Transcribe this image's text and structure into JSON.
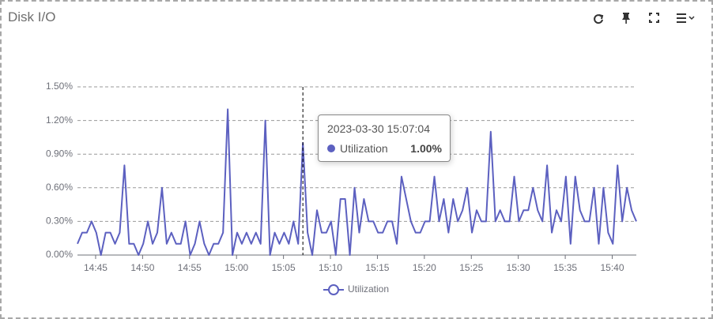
{
  "chart_data": {
    "type": "line",
    "title": "Disk I/O",
    "x": [
      "14:43:04",
      "14:43:34",
      "14:44:04",
      "14:44:34",
      "14:45:04",
      "14:45:34",
      "14:46:04",
      "14:46:34",
      "14:47:04",
      "14:47:34",
      "14:48:04",
      "14:48:34",
      "14:49:04",
      "14:49:34",
      "14:50:04",
      "14:50:34",
      "14:51:04",
      "14:51:34",
      "14:52:04",
      "14:52:34",
      "14:53:04",
      "14:53:34",
      "14:54:04",
      "14:54:34",
      "14:55:04",
      "14:55:34",
      "14:56:04",
      "14:56:34",
      "14:57:04",
      "14:57:34",
      "14:58:04",
      "14:58:34",
      "14:59:04",
      "14:59:34",
      "15:00:04",
      "15:00:34",
      "15:01:04",
      "15:01:34",
      "15:02:04",
      "15:02:34",
      "15:03:04",
      "15:03:34",
      "15:04:04",
      "15:04:34",
      "15:05:04",
      "15:05:34",
      "15:06:04",
      "15:06:34",
      "15:07:04",
      "15:07:34",
      "15:08:04",
      "15:08:34",
      "15:09:04",
      "15:09:34",
      "15:10:04",
      "15:10:34",
      "15:11:04",
      "15:11:34",
      "15:12:04",
      "15:12:34",
      "15:13:04",
      "15:13:34",
      "15:14:04",
      "15:14:34",
      "15:15:04",
      "15:15:34",
      "15:16:04",
      "15:16:34",
      "15:17:04",
      "15:17:34",
      "15:18:04",
      "15:18:34",
      "15:19:04",
      "15:19:34",
      "15:20:04",
      "15:20:34",
      "15:21:04",
      "15:21:34",
      "15:22:04",
      "15:22:34",
      "15:23:04",
      "15:23:34",
      "15:24:04",
      "15:24:34",
      "15:25:04",
      "15:25:34",
      "15:26:04",
      "15:26:34",
      "15:27:04",
      "15:27:34",
      "15:28:04",
      "15:28:34",
      "15:29:04",
      "15:29:34",
      "15:30:04",
      "15:30:34",
      "15:31:04",
      "15:31:34",
      "15:32:04",
      "15:32:34",
      "15:33:04",
      "15:33:34",
      "15:34:04",
      "15:34:34",
      "15:35:04",
      "15:35:34",
      "15:36:04",
      "15:36:34",
      "15:37:04",
      "15:37:34",
      "15:38:04",
      "15:38:34",
      "15:39:04",
      "15:39:34",
      "15:40:04",
      "15:40:34",
      "15:41:04",
      "15:41:34",
      "15:42:04",
      "15:42:34"
    ],
    "series": [
      {
        "name": "Utilization",
        "color": "#5c60c0",
        "values": [
          0.1,
          0.2,
          0.2,
          0.3,
          0.2,
          0.0,
          0.2,
          0.2,
          0.1,
          0.2,
          0.8,
          0.1,
          0.1,
          0.0,
          0.1,
          0.3,
          0.1,
          0.2,
          0.6,
          0.1,
          0.2,
          0.1,
          0.1,
          0.3,
          0.0,
          0.1,
          0.3,
          0.1,
          0.0,
          0.1,
          0.1,
          0.2,
          1.3,
          0.0,
          0.2,
          0.1,
          0.2,
          0.1,
          0.2,
          0.1,
          1.2,
          0.0,
          0.2,
          0.1,
          0.2,
          0.1,
          0.3,
          0.1,
          1.0,
          0.2,
          0.0,
          0.4,
          0.2,
          0.2,
          0.3,
          0.0,
          0.5,
          0.5,
          0.0,
          0.6,
          0.2,
          0.5,
          0.3,
          0.3,
          0.2,
          0.2,
          0.3,
          0.3,
          0.1,
          0.7,
          0.5,
          0.3,
          0.2,
          0.2,
          0.3,
          0.3,
          0.7,
          0.3,
          0.5,
          0.2,
          0.5,
          0.3,
          0.4,
          0.6,
          0.2,
          0.4,
          0.3,
          0.3,
          1.1,
          0.3,
          0.4,
          0.3,
          0.3,
          0.7,
          0.3,
          0.4,
          0.4,
          0.6,
          0.4,
          0.3,
          0.8,
          0.2,
          0.4,
          0.3,
          0.7,
          0.1,
          0.7,
          0.4,
          0.3,
          0.3,
          0.6,
          0.1,
          0.6,
          0.2,
          0.1,
          0.8,
          0.3,
          0.6,
          0.4,
          0.3
        ]
      }
    ],
    "xlim": [
      "14:43:04",
      "15:42:34"
    ],
    "xticks": [
      "14:45",
      "14:50",
      "14:55",
      "15:00",
      "15:05",
      "15:10",
      "15:15",
      "15:20",
      "15:25",
      "15:30",
      "15:35",
      "15:40"
    ],
    "ylim": [
      0,
      1.5
    ],
    "yticks": [
      {
        "value": 0,
        "label": "0.00%"
      },
      {
        "value": 0.3,
        "label": "0.30%"
      },
      {
        "value": 0.6,
        "label": "0.60%"
      },
      {
        "value": 0.9,
        "label": "0.90%"
      },
      {
        "value": 1.2,
        "label": "1.20%"
      },
      {
        "value": 1.5,
        "label": "1.50%"
      }
    ],
    "grid": true,
    "legend": "bottom",
    "tooltip": {
      "title": "2023-03-30 15:07:04",
      "value_label": "1.00%"
    }
  }
}
